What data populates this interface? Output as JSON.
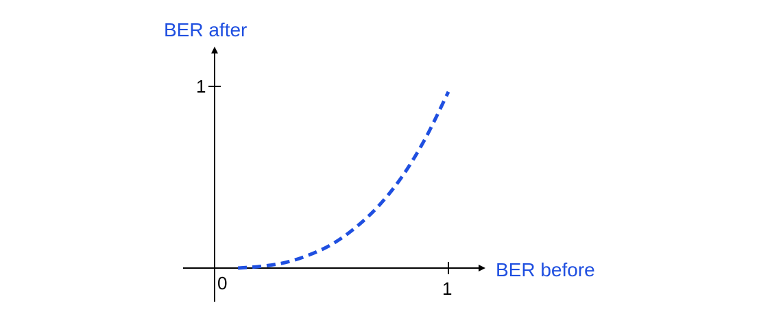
{
  "chart_data": {
    "type": "line",
    "xlabel": "BER before",
    "ylabel": "BER after",
    "x_ticks": [
      "1"
    ],
    "y_ticks": [
      "1"
    ],
    "origin_label": "0",
    "xlim": [
      0,
      1
    ],
    "ylim": [
      0,
      1
    ],
    "grid": false,
    "series": [
      {
        "style": "dashed",
        "x": [
          0.1,
          0.2,
          0.3,
          0.4,
          0.5,
          0.6,
          0.7,
          0.8,
          0.9,
          1.0
        ],
        "y": [
          0.0,
          0.01,
          0.03,
          0.07,
          0.13,
          0.22,
          0.34,
          0.5,
          0.71,
          0.97
        ]
      }
    ]
  },
  "colors": {
    "axis": "#000000",
    "series": "#1f4fe0",
    "label": "#1f4fe0"
  }
}
